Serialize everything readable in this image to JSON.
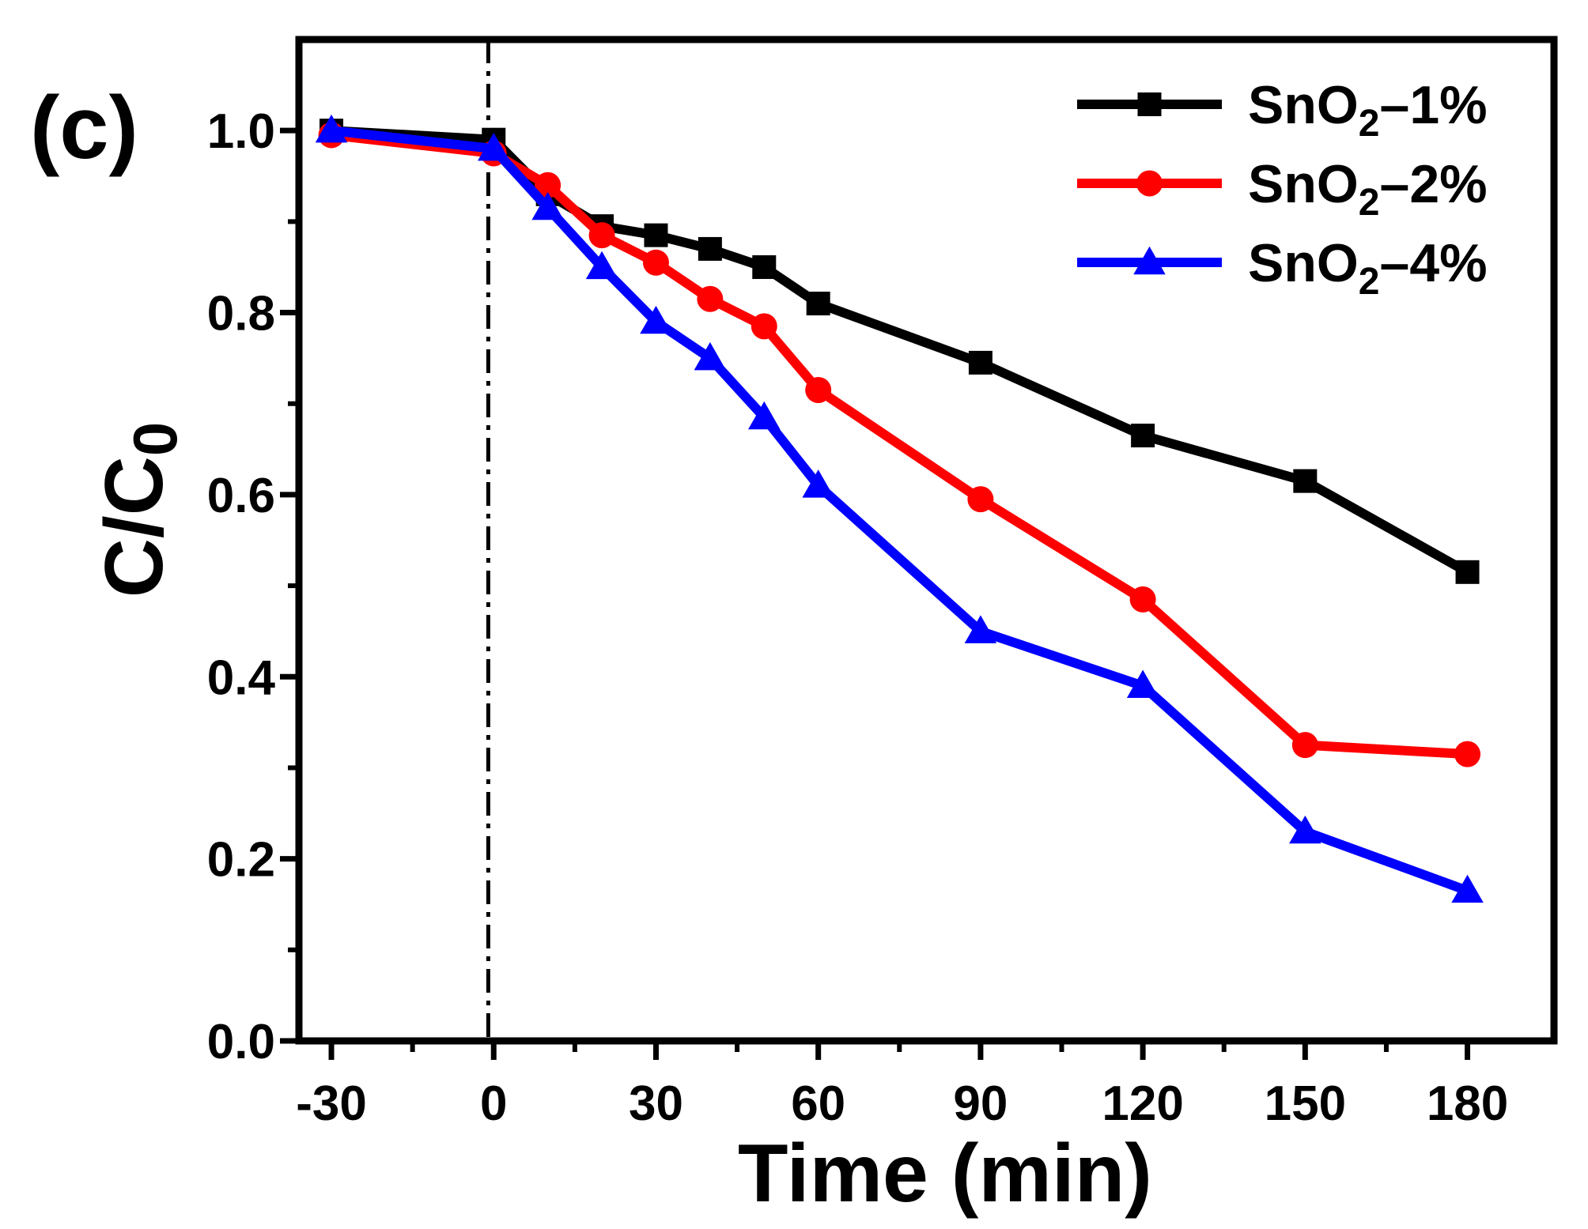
{
  "panel_label": "(c)",
  "chart_data": {
    "type": "line",
    "xlabel": "Time (min)",
    "ylabel": "C/C",
    "ylabel_sub": "0",
    "x": [
      -30,
      0,
      10,
      20,
      30,
      40,
      50,
      60,
      90,
      120,
      150,
      180
    ],
    "xticks": [
      -30,
      0,
      30,
      60,
      90,
      120,
      150,
      180
    ],
    "xtick_labels": [
      "-30",
      "0",
      "30",
      "60",
      "90",
      "120",
      "150",
      "180"
    ],
    "yticks": [
      0.0,
      0.2,
      0.4,
      0.6,
      0.8,
      1.0
    ],
    "ytick_labels": [
      "0.0",
      "0.2",
      "0.4",
      "0.6",
      "0.8",
      "1.0"
    ],
    "xlim": [
      -36,
      196
    ],
    "ylim": [
      0.0,
      1.1
    ],
    "dark_reference_line_x": -1,
    "legend_position": "top-right",
    "grid": false,
    "series": [
      {
        "name": "SnO2–1%",
        "label_main": "SnO",
        "label_sub": "2",
        "label_suffix": "–1%",
        "color": "#000000",
        "marker": "square",
        "values": [
          1.0,
          0.99,
          0.93,
          0.895,
          0.885,
          0.87,
          0.85,
          0.81,
          0.745,
          0.665,
          0.615,
          0.515
        ]
      },
      {
        "name": "SnO2–2%",
        "label_main": "SnO",
        "label_sub": "2",
        "label_suffix": "–2%",
        "color": "#ff0000",
        "marker": "circle",
        "values": [
          0.995,
          0.975,
          0.94,
          0.885,
          0.855,
          0.815,
          0.785,
          0.715,
          0.595,
          0.485,
          0.325,
          0.315
        ]
      },
      {
        "name": "SnO2–4%",
        "label_main": "SnO",
        "label_sub": "2",
        "label_suffix": "–4%",
        "color": "#0000ff",
        "marker": "triangle",
        "values": [
          1.0,
          0.98,
          0.915,
          0.85,
          0.79,
          0.75,
          0.685,
          0.61,
          0.45,
          0.39,
          0.23,
          0.165
        ]
      }
    ]
  }
}
